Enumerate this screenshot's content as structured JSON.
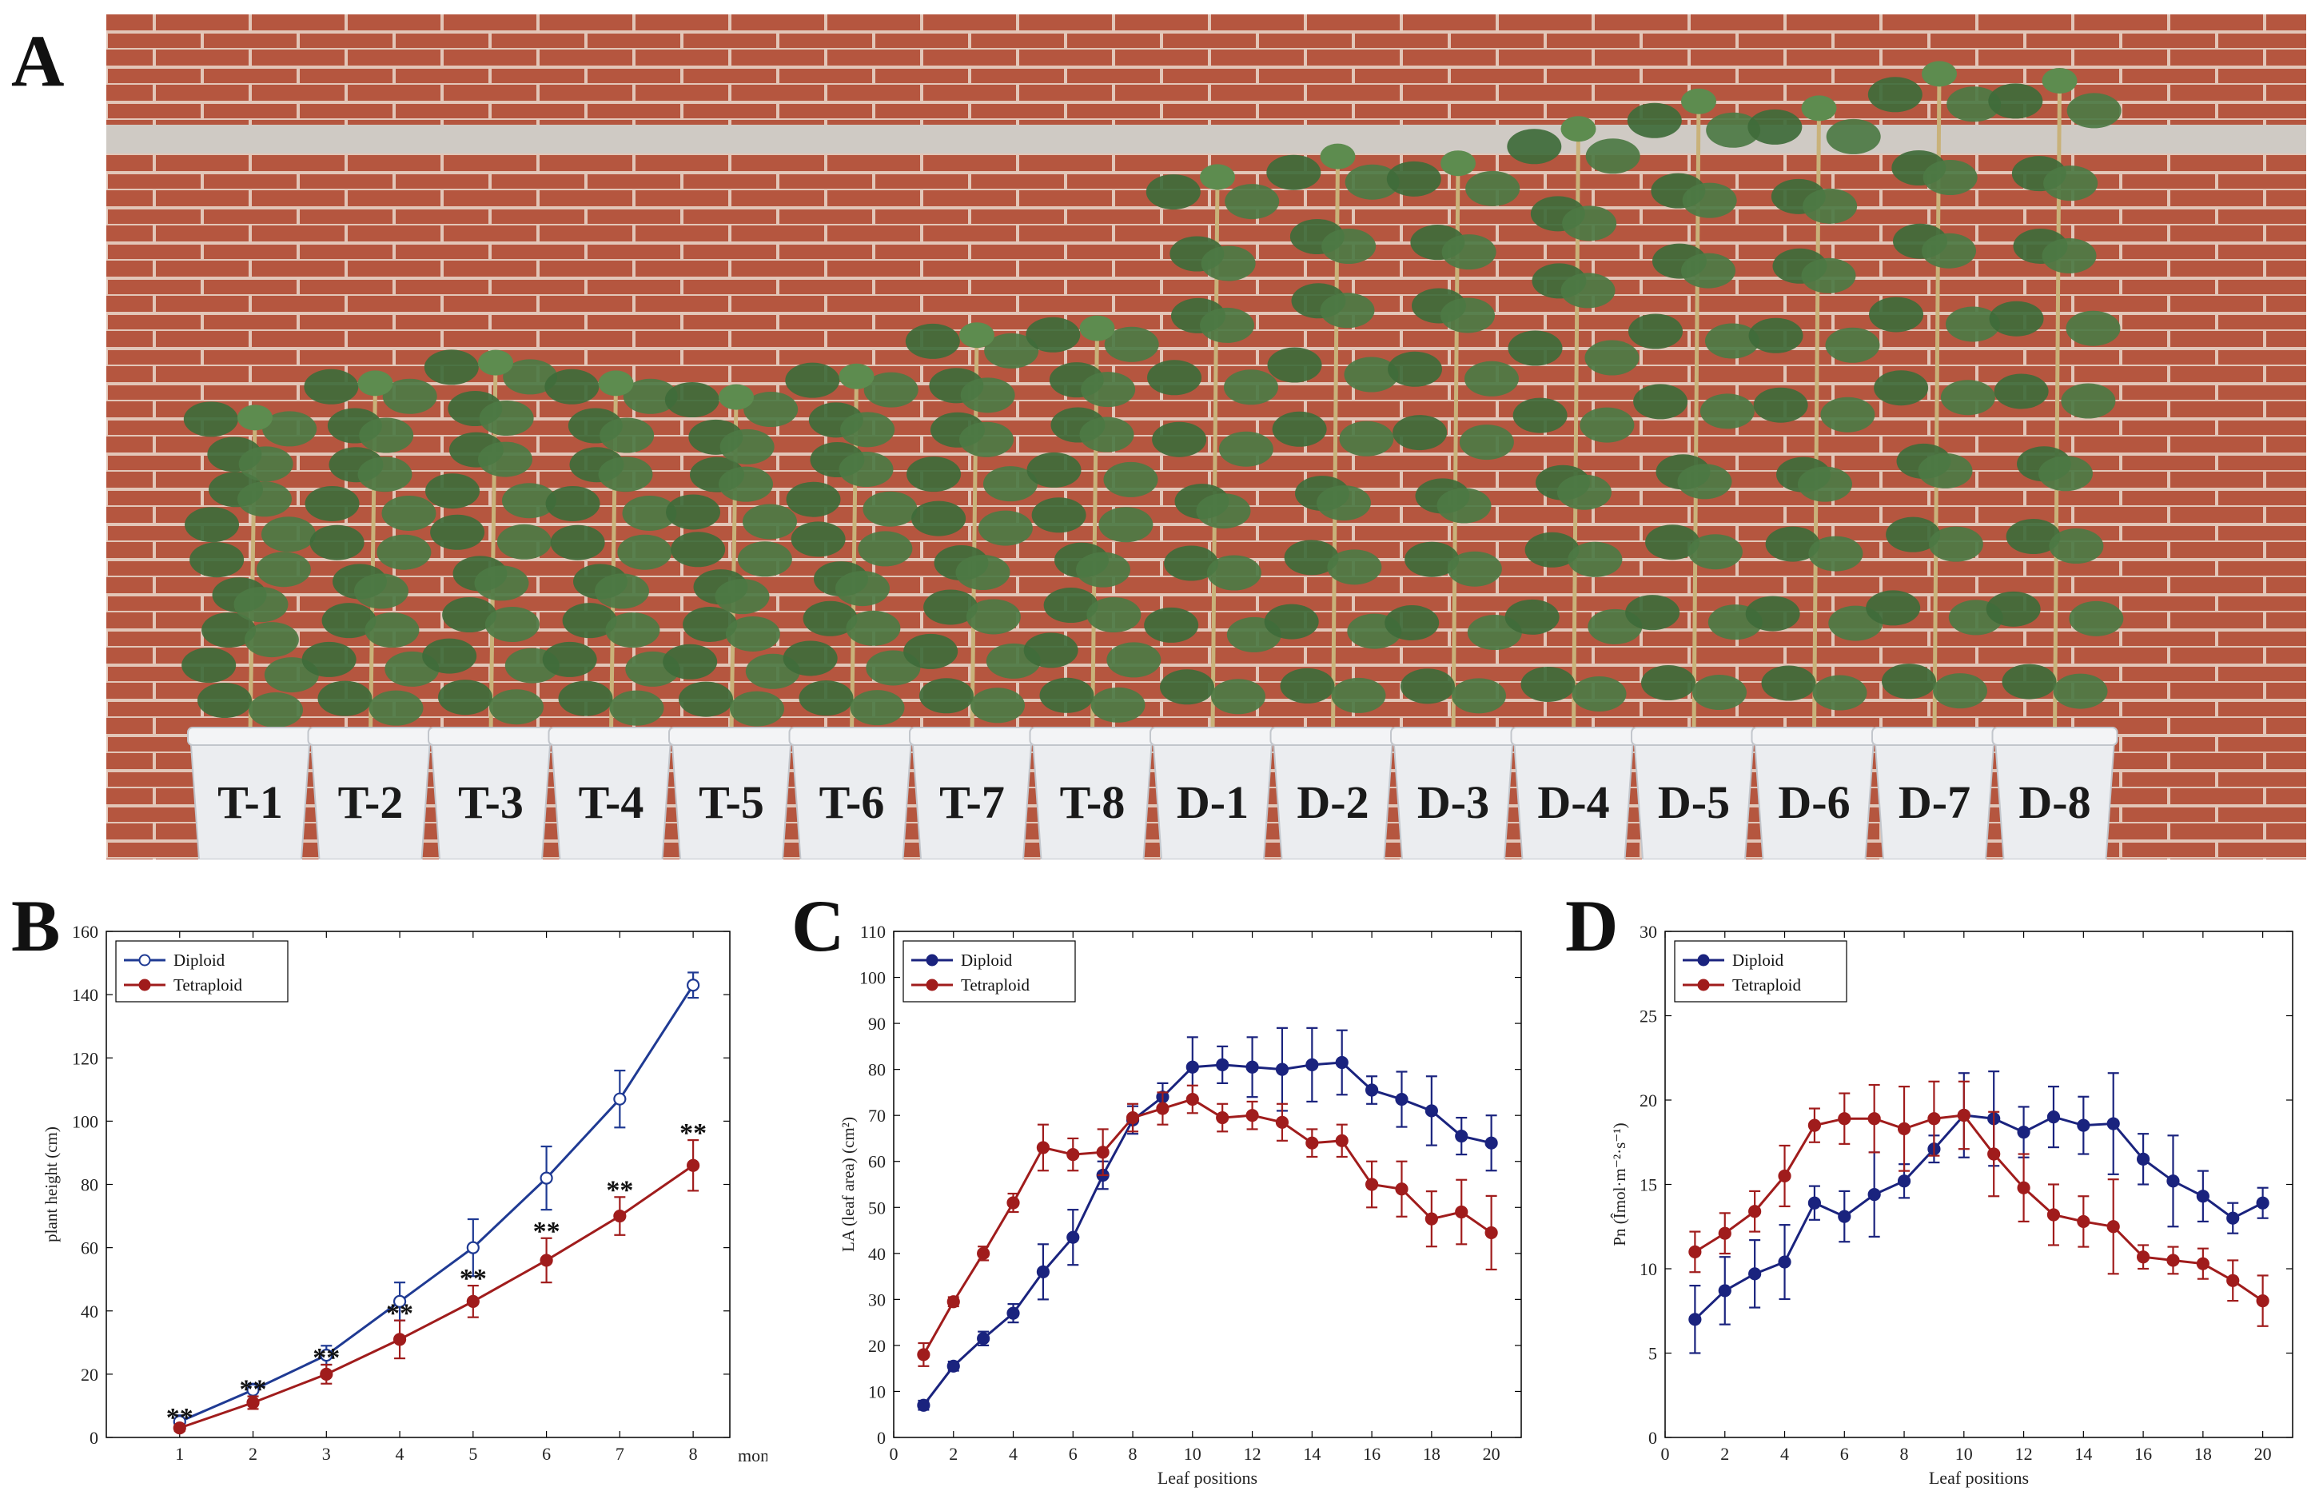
{
  "panel_labels": {
    "a": "A",
    "b": "B",
    "c": "C",
    "d": "D"
  },
  "photo": {
    "pot_labels": [
      "T-1",
      "T-2",
      "T-3",
      "T-4",
      "T-5",
      "T-6",
      "T-7",
      "T-8",
      "D-1",
      "D-2",
      "D-3",
      "D-4",
      "D-5",
      "D-6",
      "D-7",
      "D-8"
    ],
    "plant_height_fraction": [
      0.46,
      0.51,
      0.54,
      0.51,
      0.49,
      0.52,
      0.58,
      0.59,
      0.81,
      0.84,
      0.83,
      0.88,
      0.92,
      0.91,
      0.96,
      0.95
    ],
    "colors": {
      "brick": "#b5563f",
      "mortar": "#e8cfc2",
      "ledge": "#cfcac4",
      "leaf": "#3f6b3a",
      "pot": "#ebedf0",
      "pot_text": "#1a1a1a"
    }
  },
  "chart_data": [
    {
      "type": "line",
      "panel": "B",
      "title": "",
      "xlabel": "months",
      "ylabel": "plant height (cm)",
      "xlim": [
        0,
        8.5
      ],
      "ylim": [
        0,
        160
      ],
      "xticks": [
        "1",
        "2",
        "3",
        "4",
        "5",
        "6",
        "7",
        "8"
      ],
      "yticks": [
        "0",
        "20",
        "40",
        "60",
        "80",
        "100",
        "120",
        "140",
        "160"
      ],
      "x": [
        1,
        2,
        3,
        4,
        5,
        6,
        7,
        8
      ],
      "series": [
        {
          "name": "Diploid",
          "color": "#1f3a93",
          "marker": "open",
          "values": [
            5,
            15,
            26,
            43,
            60,
            82,
            107,
            143
          ],
          "errors": [
            2,
            2,
            3,
            6,
            9,
            10,
            9,
            4
          ]
        },
        {
          "name": "Tetraploid",
          "color": "#a01c1c",
          "marker": "filled",
          "values": [
            3,
            11,
            20,
            31,
            43,
            56,
            70,
            86
          ],
          "errors": [
            1,
            2,
            3,
            6,
            5,
            7,
            6,
            8
          ]
        }
      ],
      "significance": {
        "label": "**",
        "x": [
          1,
          2,
          3,
          4,
          5,
          6,
          7,
          8
        ]
      },
      "legend": "top-left"
    },
    {
      "type": "line",
      "panel": "C",
      "title": "",
      "xlabel": "Leaf positions",
      "ylabel": "LA (leaf area) (cm²)",
      "xlim": [
        0,
        21
      ],
      "ylim": [
        0,
        110
      ],
      "xticks": [
        "0",
        "2",
        "4",
        "6",
        "8",
        "10",
        "12",
        "14",
        "16",
        "18",
        "20"
      ],
      "yticks": [
        "0",
        "10",
        "20",
        "30",
        "40",
        "50",
        "60",
        "70",
        "80",
        "90",
        "100",
        "110"
      ],
      "x": [
        1,
        2,
        3,
        4,
        5,
        6,
        7,
        8,
        9,
        10,
        11,
        12,
        13,
        14,
        15,
        16,
        17,
        18,
        19,
        20
      ],
      "series": [
        {
          "name": "Diploid",
          "color": "#1a237e",
          "marker": "filled",
          "values": [
            7,
            15.5,
            21.5,
            27,
            36,
            43.5,
            57,
            69,
            74,
            80.5,
            81,
            80.5,
            80,
            81,
            81.5,
            75.5,
            73.5,
            71,
            65.5,
            64
          ],
          "errors": [
            1,
            1,
            1.5,
            2,
            6,
            6,
            3,
            3,
            3,
            6.5,
            4,
            6.5,
            9,
            8,
            7,
            3,
            6,
            7.5,
            4,
            6
          ]
        },
        {
          "name": "Tetraploid",
          "color": "#a01c1c",
          "marker": "filled",
          "values": [
            18,
            29.5,
            40,
            51,
            63,
            61.5,
            62,
            69.5,
            71.5,
            73.5,
            69.5,
            70,
            68.5,
            64,
            64.5,
            55,
            54,
            47.5,
            49,
            44.5
          ],
          "errors": [
            2.5,
            1,
            1.5,
            2,
            5,
            3.5,
            5,
            3,
            3.5,
            3,
            3,
            3,
            4,
            3,
            3.5,
            5,
            6,
            6,
            7,
            8
          ]
        }
      ],
      "legend": "top-left"
    },
    {
      "type": "line",
      "panel": "D",
      "title": "",
      "xlabel": "Leaf positions",
      "ylabel": "Pn (µmol·m⁻²·s⁻¹)",
      "ylabel_display": "Pn (Îmol·m⁻²·s⁻¹)",
      "xlim": [
        0,
        21
      ],
      "ylim": [
        0,
        30
      ],
      "xticks": [
        "0",
        "2",
        "4",
        "6",
        "8",
        "10",
        "12",
        "14",
        "16",
        "18",
        "20"
      ],
      "yticks": [
        "0",
        "5",
        "10",
        "15",
        "20",
        "25",
        "30"
      ],
      "x": [
        1,
        2,
        3,
        4,
        5,
        6,
        7,
        8,
        9,
        10,
        11,
        12,
        13,
        14,
        15,
        16,
        17,
        18,
        19,
        20
      ],
      "series": [
        {
          "name": "Diploid",
          "color": "#1a237e",
          "marker": "filled",
          "values": [
            7,
            8.7,
            9.7,
            10.4,
            13.9,
            13.1,
            14.4,
            15.2,
            17.1,
            19.1,
            18.9,
            18.1,
            19,
            18.5,
            18.6,
            16.5,
            15.2,
            14.3,
            13,
            13.9
          ],
          "errors": [
            2,
            2,
            2,
            2.2,
            1,
            1.5,
            2.5,
            1,
            0.8,
            2.5,
            2.8,
            1.5,
            1.8,
            1.7,
            3,
            1.5,
            2.7,
            1.5,
            0.9,
            0.9
          ]
        },
        {
          "name": "Tetraploid",
          "color": "#a01c1c",
          "marker": "filled",
          "values": [
            11,
            12.1,
            13.4,
            15.5,
            18.5,
            18.9,
            18.9,
            18.3,
            18.9,
            19.1,
            16.8,
            14.8,
            13.2,
            12.8,
            12.5,
            10.7,
            10.5,
            10.3,
            9.3,
            8.1
          ],
          "errors": [
            1.2,
            1.2,
            1.2,
            1.8,
            1,
            1.5,
            2,
            2.5,
            2.2,
            2,
            2.5,
            2,
            1.8,
            1.5,
            2.8,
            0.7,
            0.8,
            0.9,
            1.2,
            1.5
          ]
        }
      ],
      "legend": "top-left"
    }
  ]
}
